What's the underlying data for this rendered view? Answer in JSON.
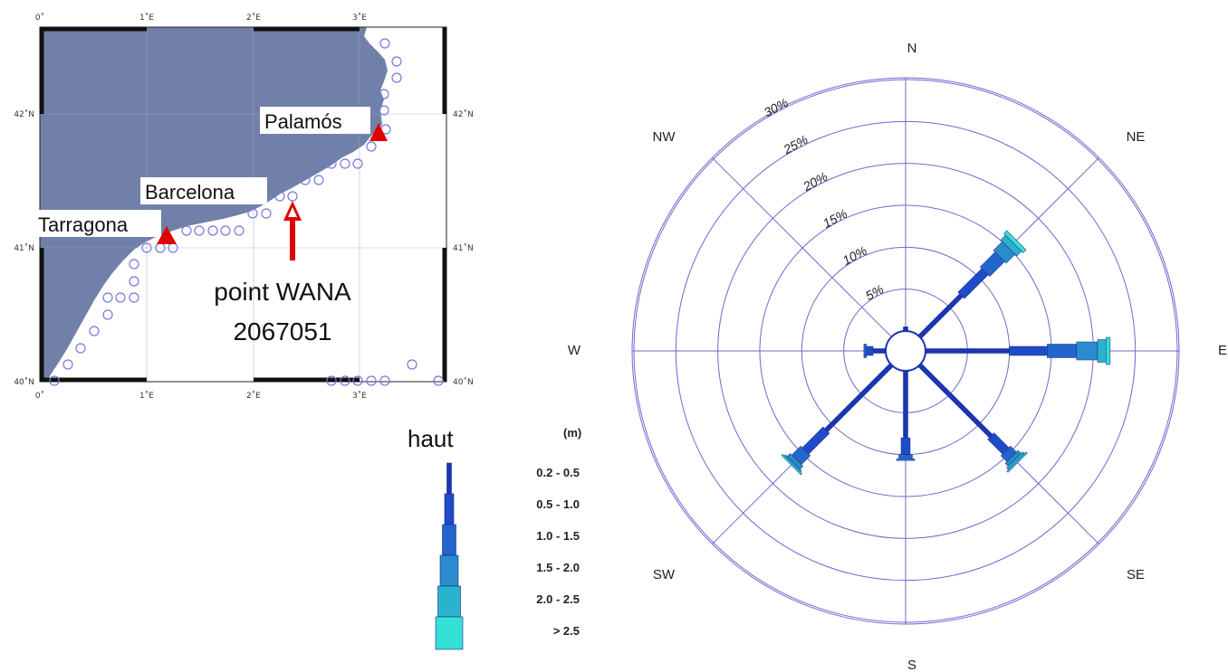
{
  "map": {
    "lon_ticks": [
      "0˚",
      "1˚E",
      "2˚E",
      "3˚E"
    ],
    "lat_ticks": [
      "42˚N",
      "41˚N",
      "40˚N"
    ],
    "cities": [
      "Palamós",
      "Barcelona",
      "Tarragona"
    ],
    "point_label": "point WANA",
    "point_id": "2067051",
    "colors": {
      "land": "#7080a8",
      "sea": "#ffffff",
      "marker": "#e00000",
      "grid_point": "#7777dd"
    }
  },
  "legend": {
    "title": "haut",
    "unit": "(m)",
    "classes": [
      "0.2 - 0.5",
      "0.5 - 1.0",
      "1.0 - 1.5",
      "1.5 - 2.0",
      "2.0 - 2.5",
      "> 2.5"
    ],
    "colors": [
      "#1a35b5",
      "#1f4bc8",
      "#2266cc",
      "#2a8ccc",
      "#2ab3cc",
      "#33e0d6"
    ]
  },
  "chart_data": {
    "type": "wind-rose",
    "directions": [
      "N",
      "NE",
      "E",
      "SE",
      "S",
      "SW",
      "W",
      "NW"
    ],
    "ring_labels": [
      "5%",
      "10%",
      "15%",
      "20%",
      "25%",
      "30%"
    ],
    "rmax": 30,
    "grid": true,
    "legend_placement": "left",
    "series": [
      {
        "class": "0.2 - 0.5",
        "values": [
          0.5,
          7,
          10,
          12,
          8,
          11,
          1.5,
          0
        ]
      },
      {
        "class": "0.5 - 1.0",
        "values": [
          0,
          4,
          4.5,
          2.5,
          2,
          3.5,
          0.8,
          0
        ]
      },
      {
        "class": "1.0 - 1.5",
        "values": [
          0,
          2.5,
          3.5,
          1,
          0.5,
          1.5,
          0.3,
          0
        ]
      },
      {
        "class": "1.5 - 2.0",
        "values": [
          0,
          1.5,
          2.5,
          0.5,
          0.2,
          0.5,
          0,
          0
        ]
      },
      {
        "class": "2.0 - 2.5",
        "values": [
          0,
          0.8,
          1,
          0.3,
          0,
          0.2,
          0,
          0
        ]
      },
      {
        "class": "> 2.5",
        "values": [
          0,
          0.5,
          0.5,
          0.2,
          0,
          0.2,
          0,
          0
        ]
      }
    ]
  }
}
